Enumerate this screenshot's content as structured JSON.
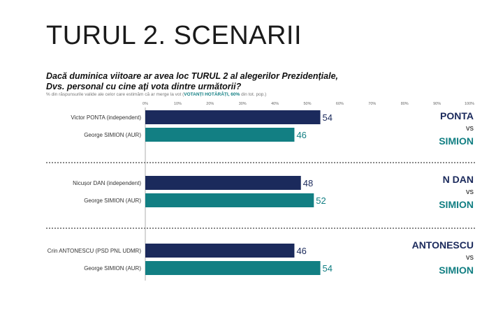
{
  "slide": {
    "title": "TURUL 2. SCENARII",
    "question_line1": "Dacă duminica viitoare ar avea loc TURUL 2 al alegerilor Prezidențiale,",
    "question_line2": "Dvs. personal cu cine ați vota dintre următorii?",
    "note_prefix": "% din răspunsurile valide ale celor care estimăm că ar merge la vot (",
    "note_highlight": "VOTANȚI HOTĂRÂȚI, 60%",
    "note_suffix": " din tot. pop.)"
  },
  "colors": {
    "navy": "#1b2a5c",
    "teal": "#127f83"
  },
  "chart_data": {
    "type": "bar",
    "orientation": "horizontal",
    "xlim": [
      0,
      100
    ],
    "ticks": [
      "0%",
      "10%",
      "20%",
      "30%",
      "40%",
      "50%",
      "60%",
      "70%",
      "80%",
      "90%",
      "100%"
    ],
    "scenarios": [
      {
        "label_a": "PONTA",
        "vs": "vs",
        "label_b": "SIMION",
        "bars": [
          {
            "name": "Victor PONTA (independent)",
            "value": 54,
            "color": "navy"
          },
          {
            "name": "George SIMION (AUR)",
            "value": 46,
            "color": "teal"
          }
        ]
      },
      {
        "label_a": "N DAN",
        "vs": "vs",
        "label_b": "SIMION",
        "bars": [
          {
            "name": "Nicușor DAN (independent)",
            "value": 48,
            "color": "navy"
          },
          {
            "name": "George SIMION (AUR)",
            "value": 52,
            "color": "teal"
          }
        ]
      },
      {
        "label_a": "ANTONESCU",
        "vs": "vs",
        "label_b": "SIMION",
        "bars": [
          {
            "name": "Crin ANTONESCU (PSD PNL UDMR)",
            "value": 46,
            "color": "navy"
          },
          {
            "name": "George SIMION (AUR)",
            "value": 54,
            "color": "teal"
          }
        ]
      }
    ]
  }
}
